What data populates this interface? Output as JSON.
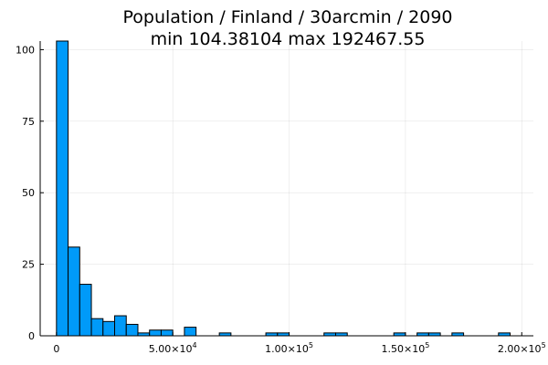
{
  "chart_data": {
    "type": "bar",
    "title": "Population / Finland / 30arcmin / 2090",
    "subtitle": "min 104.38104  max 192467.55",
    "xlabel": "",
    "ylabel": "",
    "bin_width": 5000,
    "xlim": [
      -7000,
      205000
    ],
    "ylim": [
      0,
      103
    ],
    "grid": true,
    "legend": "none",
    "bar_color": "#009af9",
    "x_ticks": [
      {
        "value": 0,
        "label": "0",
        "exp": ""
      },
      {
        "value": 50000,
        "label": "5.00×10",
        "exp": "4"
      },
      {
        "value": 100000,
        "label": "1.00×10",
        "exp": "5"
      },
      {
        "value": 150000,
        "label": "1.50×10",
        "exp": "5"
      },
      {
        "value": 200000,
        "label": "2.00×10",
        "exp": "5"
      }
    ],
    "y_ticks": [
      {
        "value": 0,
        "label": "0"
      },
      {
        "value": 25,
        "label": "25"
      },
      {
        "value": 50,
        "label": "50"
      },
      {
        "value": 75,
        "label": "75"
      },
      {
        "value": 100,
        "label": "100"
      }
    ],
    "bins": [
      {
        "x0": 0,
        "count": 103
      },
      {
        "x0": 5000,
        "count": 31
      },
      {
        "x0": 10000,
        "count": 18
      },
      {
        "x0": 15000,
        "count": 6
      },
      {
        "x0": 20000,
        "count": 5
      },
      {
        "x0": 25000,
        "count": 7
      },
      {
        "x0": 30000,
        "count": 4
      },
      {
        "x0": 35000,
        "count": 1
      },
      {
        "x0": 40000,
        "count": 2
      },
      {
        "x0": 45000,
        "count": 2
      },
      {
        "x0": 55000,
        "count": 3
      },
      {
        "x0": 70000,
        "count": 1
      },
      {
        "x0": 90000,
        "count": 1
      },
      {
        "x0": 95000,
        "count": 1
      },
      {
        "x0": 115000,
        "count": 1
      },
      {
        "x0": 120000,
        "count": 1
      },
      {
        "x0": 145000,
        "count": 1
      },
      {
        "x0": 155000,
        "count": 1
      },
      {
        "x0": 160000,
        "count": 1
      },
      {
        "x0": 170000,
        "count": 1
      },
      {
        "x0": 190000,
        "count": 1
      }
    ]
  }
}
